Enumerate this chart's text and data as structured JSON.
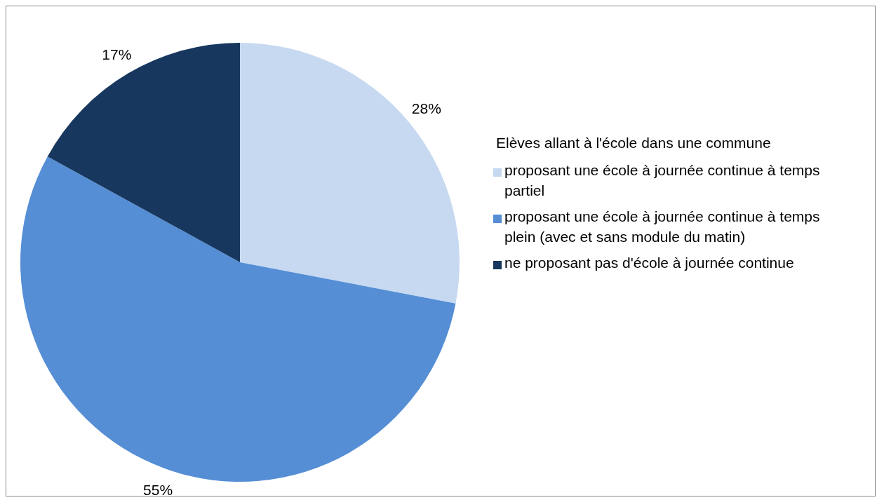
{
  "chart_data": {
    "type": "pie",
    "categories": [
      "proposant une école à journée continue à temps partiel",
      "proposant une école à journée continue à temps plein (avec et sans module du matin)",
      "ne proposant pas d'école à journée continue"
    ],
    "values": [
      28,
      55,
      17
    ],
    "value_labels": [
      "28%",
      "55%",
      "17%"
    ],
    "colors": [
      "#c6d9f1",
      "#558ed5",
      "#17375e"
    ],
    "legend_title": "Elèves allant à l'école dans une commune",
    "legend": "right"
  }
}
